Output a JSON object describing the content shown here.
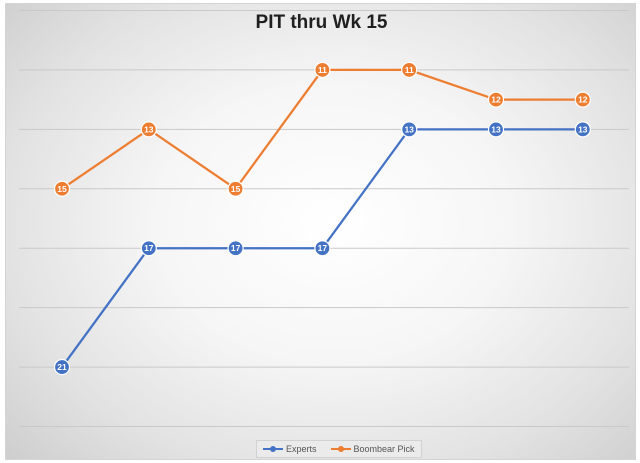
{
  "chart_data": {
    "type": "line",
    "title": "PIT thru Wk 15",
    "xlabel": "",
    "ylabel": "",
    "x": [
      1,
      2,
      3,
      4,
      5,
      6,
      7
    ],
    "y_axis_inverted": true,
    "ylim": [
      23,
      9
    ],
    "grid": true,
    "legend": "bottom-center",
    "data_labels": true,
    "series": [
      {
        "name": "Experts",
        "color": "#4472C4",
        "values": [
          21,
          17,
          17,
          17,
          13,
          13,
          13
        ]
      },
      {
        "name": "Boombear Pick",
        "color": "#ED7D31",
        "values": [
          15,
          13,
          15,
          11,
          11,
          12,
          12
        ]
      }
    ]
  }
}
